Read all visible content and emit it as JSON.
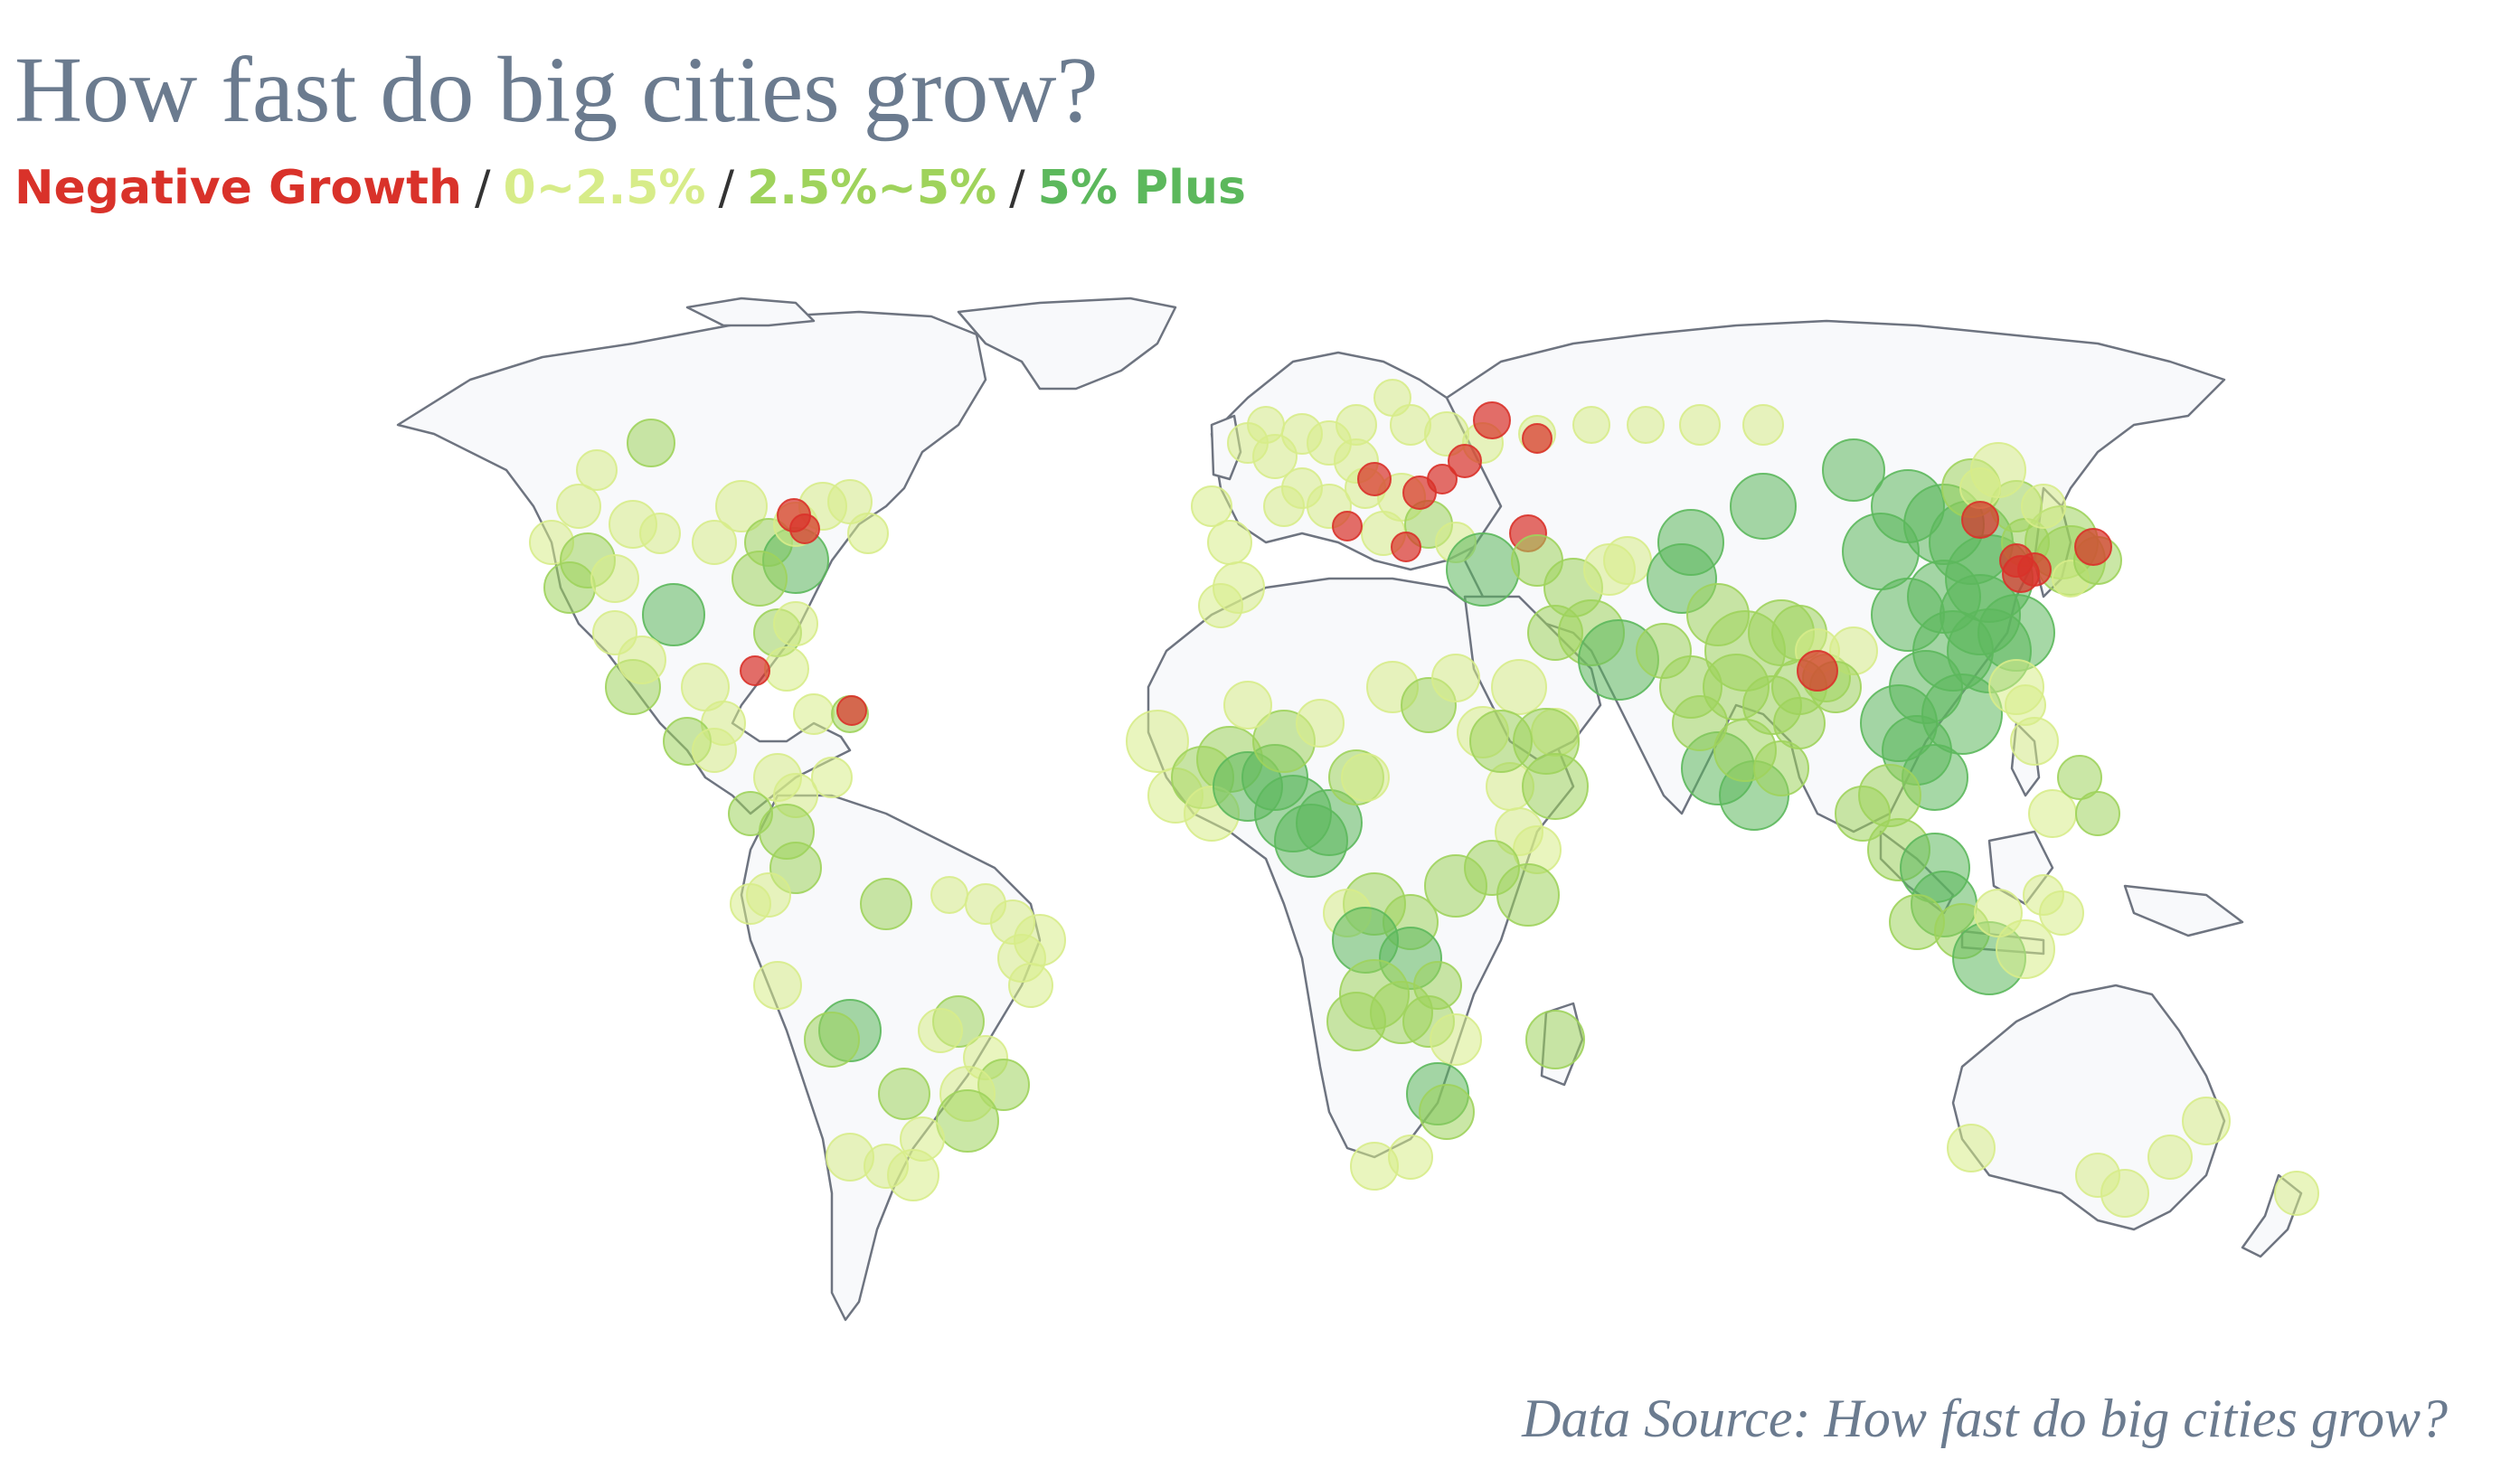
{
  "title": "How fast do big cities grow?",
  "legend": [
    {
      "label": "Negative Growth",
      "color": "#d9322a"
    },
    {
      "label": "0~2.5%",
      "color": "#d7ec89"
    },
    {
      "label": "2.5%~5%",
      "color": "#9fd35c"
    },
    {
      "label": "5% Plus",
      "color": "#5cb85c"
    }
  ],
  "separator": "/",
  "source": "Data Source: How fast do big cities grow?",
  "colors": {
    "land": "#f8f9fb",
    "border": "#6e7480",
    "negative": "#d9322a",
    "low": "#d7ec89",
    "mid": "#9fd35c",
    "high": "#5cb85c"
  }
}
